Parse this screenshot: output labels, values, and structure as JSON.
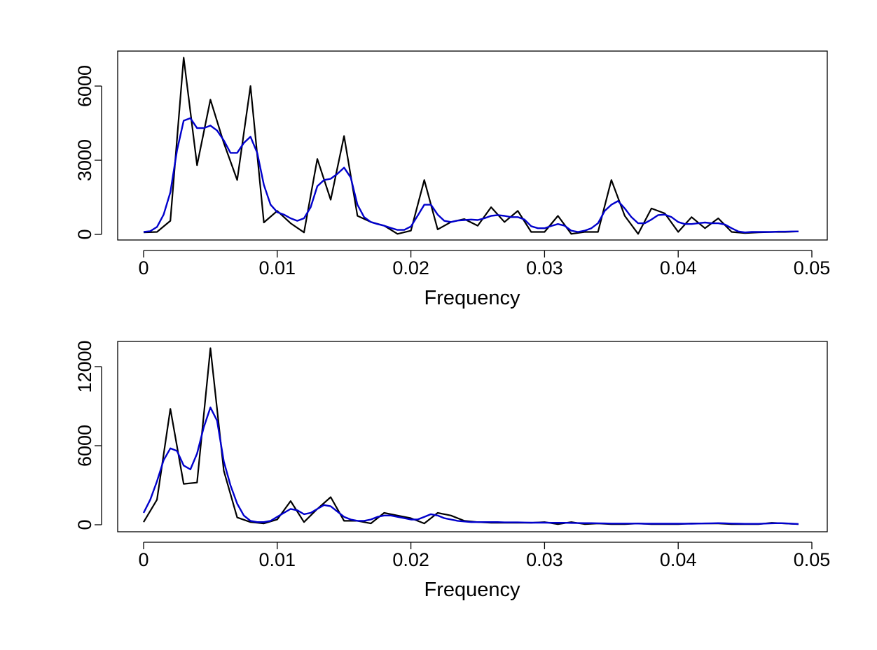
{
  "chart_data": [
    {
      "type": "line",
      "xlabel": "Frequency",
      "ylabel": "",
      "xlim": [
        0,
        0.05
      ],
      "ylim": [
        0,
        7200
      ],
      "x_ticks": [
        0,
        0.01,
        0.02,
        0.03,
        0.04,
        0.05
      ],
      "x_tick_labels": [
        "0",
        "0.01",
        "0.02",
        "0.03",
        "0.04",
        "0.05"
      ],
      "y_ticks": [
        0,
        3000,
        6000
      ],
      "y_tick_labels": [
        "0",
        "3000",
        "6000"
      ],
      "grid": false,
      "series": [
        {
          "color": "#000000",
          "x": [
            0,
            0.001,
            0.002,
            0.003,
            0.004,
            0.005,
            0.006,
            0.007,
            0.008,
            0.009,
            0.01,
            0.011,
            0.012,
            0.013,
            0.014,
            0.015,
            0.016,
            0.017,
            0.018,
            0.019,
            0.02,
            0.021,
            0.022,
            0.023,
            0.024,
            0.025,
            0.026,
            0.027,
            0.028,
            0.029,
            0.03,
            0.031,
            0.032,
            0.033,
            0.034,
            0.035,
            0.036,
            0.037,
            0.038,
            0.039,
            0.04,
            0.041,
            0.042,
            0.043,
            0.044,
            0.045,
            0.046,
            0.047,
            0.048,
            0.049
          ],
          "values": [
            80,
            100,
            550,
            7150,
            2800,
            5450,
            3700,
            2200,
            6000,
            480,
            950,
            450,
            80,
            3050,
            1400,
            3980,
            750,
            500,
            350,
            20,
            150,
            2200,
            200,
            500,
            620,
            350,
            1100,
            500,
            950,
            100,
            100,
            750,
            20,
            100,
            100,
            2200,
            750,
            20,
            1050,
            850,
            100,
            700,
            250,
            650,
            100,
            50,
            80,
            100,
            100,
            120
          ]
        },
        {
          "color": "#0000cc",
          "x": [
            0,
            0.0005,
            0.001,
            0.0015,
            0.002,
            0.0025,
            0.003,
            0.0035,
            0.004,
            0.0045,
            0.005,
            0.0055,
            0.006,
            0.0065,
            0.007,
            0.0075,
            0.008,
            0.0085,
            0.009,
            0.0095,
            0.01,
            0.0105,
            0.011,
            0.0115,
            0.012,
            0.0125,
            0.013,
            0.0135,
            0.014,
            0.0145,
            0.015,
            0.0155,
            0.016,
            0.0165,
            0.017,
            0.0175,
            0.018,
            0.0185,
            0.019,
            0.0195,
            0.02,
            0.0205,
            0.021,
            0.0215,
            0.022,
            0.0225,
            0.023,
            0.0235,
            0.024,
            0.0245,
            0.025,
            0.0255,
            0.026,
            0.0265,
            0.027,
            0.0275,
            0.028,
            0.0285,
            0.029,
            0.0295,
            0.03,
            0.0305,
            0.031,
            0.0315,
            0.032,
            0.0325,
            0.033,
            0.0335,
            0.034,
            0.0345,
            0.035,
            0.0355,
            0.036,
            0.0365,
            0.037,
            0.0375,
            0.038,
            0.0385,
            0.039,
            0.0395,
            0.04,
            0.0405,
            0.041,
            0.0415,
            0.042,
            0.0425,
            0.043,
            0.0435,
            0.044,
            0.0445,
            0.045,
            0.0455,
            0.046,
            0.0465,
            0.047,
            0.0475,
            0.048,
            0.0485,
            0.049
          ],
          "values": [
            100,
            130,
            300,
            800,
            1700,
            3400,
            4600,
            4700,
            4300,
            4300,
            4400,
            4200,
            3800,
            3300,
            3300,
            3700,
            3950,
            3300,
            2000,
            1200,
            900,
            800,
            650,
            550,
            650,
            1100,
            1950,
            2200,
            2250,
            2450,
            2700,
            2300,
            1200,
            700,
            500,
            420,
            350,
            260,
            180,
            180,
            320,
            750,
            1200,
            1200,
            800,
            550,
            500,
            560,
            580,
            600,
            580,
            650,
            750,
            780,
            750,
            700,
            700,
            600,
            330,
            250,
            250,
            340,
            420,
            350,
            150,
            100,
            150,
            250,
            450,
            950,
            1200,
            1350,
            1050,
            700,
            450,
            450,
            600,
            780,
            800,
            700,
            500,
            420,
            420,
            450,
            480,
            450,
            450,
            400,
            250,
            120,
            80,
            100,
            100,
            100,
            100,
            110,
            110,
            120,
            120
          ]
        }
      ]
    },
    {
      "type": "line",
      "xlabel": "Frequency",
      "ylabel": "",
      "xlim": [
        0,
        0.05
      ],
      "ylim": [
        0,
        13500
      ],
      "x_ticks": [
        0,
        0.01,
        0.02,
        0.03,
        0.04,
        0.05
      ],
      "x_tick_labels": [
        "0",
        "0.01",
        "0.02",
        "0.03",
        "0.04",
        "0.05"
      ],
      "y_ticks": [
        0,
        6000,
        12000
      ],
      "y_tick_labels": [
        "0",
        "6000",
        "12000"
      ],
      "grid": false,
      "series": [
        {
          "color": "#000000",
          "x": [
            0,
            0.001,
            0.002,
            0.003,
            0.004,
            0.005,
            0.006,
            0.007,
            0.008,
            0.009,
            0.01,
            0.011,
            0.012,
            0.013,
            0.014,
            0.015,
            0.016,
            0.017,
            0.018,
            0.019,
            0.02,
            0.021,
            0.022,
            0.023,
            0.024,
            0.025,
            0.026,
            0.027,
            0.028,
            0.029,
            0.03,
            0.031,
            0.032,
            0.033,
            0.034,
            0.035,
            0.036,
            0.037,
            0.038,
            0.039,
            0.04,
            0.041,
            0.042,
            0.043,
            0.044,
            0.045,
            0.046,
            0.047,
            0.048,
            0.049
          ],
          "values": [
            200,
            1900,
            8800,
            3100,
            3200,
            13400,
            4100,
            550,
            200,
            100,
            400,
            1800,
            200,
            1200,
            2100,
            300,
            300,
            100,
            900,
            700,
            500,
            100,
            900,
            700,
            300,
            200,
            150,
            150,
            150,
            150,
            200,
            50,
            200,
            50,
            100,
            50,
            50,
            100,
            50,
            50,
            50,
            100,
            100,
            100,
            50,
            50,
            50,
            150,
            100,
            50
          ]
        },
        {
          "color": "#0000cc",
          "x": [
            0,
            0.0005,
            0.001,
            0.0015,
            0.002,
            0.0025,
            0.003,
            0.0035,
            0.004,
            0.0045,
            0.005,
            0.0055,
            0.006,
            0.0065,
            0.007,
            0.0075,
            0.008,
            0.0085,
            0.009,
            0.0095,
            0.01,
            0.0105,
            0.011,
            0.0115,
            0.012,
            0.0125,
            0.013,
            0.0135,
            0.014,
            0.0145,
            0.015,
            0.0155,
            0.016,
            0.0165,
            0.017,
            0.0175,
            0.018,
            0.0185,
            0.019,
            0.0195,
            0.02,
            0.0205,
            0.021,
            0.0215,
            0.022,
            0.0225,
            0.023,
            0.0235,
            0.024,
            0.0245,
            0.025,
            0.0255,
            0.026,
            0.0265,
            0.027,
            0.0275,
            0.028,
            0.0285,
            0.029,
            0.0295,
            0.03,
            0.0305,
            0.031,
            0.0315,
            0.032,
            0.0325,
            0.033,
            0.0335,
            0.034,
            0.0345,
            0.035,
            0.0355,
            0.036,
            0.0365,
            0.037,
            0.0375,
            0.038,
            0.0385,
            0.039,
            0.0395,
            0.04,
            0.0405,
            0.041,
            0.0415,
            0.042,
            0.0425,
            0.043,
            0.0435,
            0.044,
            0.0445,
            0.045,
            0.0455,
            0.046,
            0.0465,
            0.047,
            0.0475,
            0.048,
            0.0485,
            0.049
          ],
          "values": [
            900,
            1900,
            3300,
            4900,
            5800,
            5600,
            4500,
            4200,
            5400,
            7400,
            8900,
            7900,
            4800,
            3000,
            1600,
            700,
            300,
            200,
            200,
            300,
            600,
            900,
            1200,
            1100,
            800,
            900,
            1200,
            1500,
            1400,
            1000,
            600,
            400,
            300,
            300,
            400,
            600,
            700,
            700,
            600,
            500,
            400,
            400,
            600,
            800,
            700,
            500,
            400,
            300,
            250,
            200,
            200,
            200,
            200,
            200,
            180,
            180,
            180,
            170,
            160,
            160,
            160,
            150,
            150,
            150,
            140,
            130,
            120,
            120,
            110,
            100,
            90,
            90,
            90,
            90,
            90,
            80,
            80,
            80,
            80,
            80,
            80,
            80,
            80,
            90,
            100,
            110,
            120,
            110,
            90,
            80,
            70,
            70,
            70,
            90,
            110,
            120,
            110,
            80,
            60
          ]
        }
      ]
    }
  ]
}
